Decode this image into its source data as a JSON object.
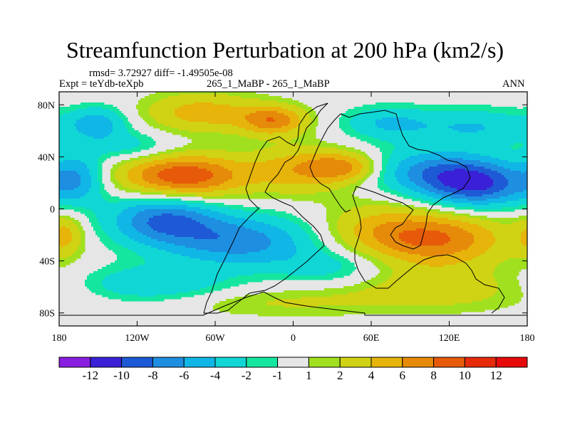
{
  "chart_data": {
    "type": "heatmap",
    "title": "Streamfunction Perturbation at 200 hPa (km2/s)",
    "stats": "rmsd= 3.72927 diff= -1.49505e-08",
    "expt": "Expt = teYdb-teXpb",
    "case": "265_1_MaBP - 265_1_MaBP",
    "period": "ANN",
    "x_ticks": [
      {
        "value": -180,
        "label": "180"
      },
      {
        "value": -120,
        "label": "120W"
      },
      {
        "value": -60,
        "label": "60W"
      },
      {
        "value": 0,
        "label": "0"
      },
      {
        "value": 60,
        "label": "60E"
      },
      {
        "value": 120,
        "label": "120E"
      },
      {
        "value": 180,
        "label": "180"
      }
    ],
    "y_ticks": [
      {
        "value": 80,
        "label": "80N"
      },
      {
        "value": 40,
        "label": "40N"
      },
      {
        "value": 0,
        "label": "0"
      },
      {
        "value": -40,
        "label": "40S"
      },
      {
        "value": -80,
        "label": "80S"
      }
    ],
    "xlim": [
      -180,
      180
    ],
    "ylim": [
      -90,
      90
    ],
    "colorbar": {
      "levels": [
        -12,
        -10,
        -8,
        -6,
        -4,
        -2,
        -1,
        1,
        2,
        4,
        6,
        8,
        10,
        12
      ],
      "labels": [
        "-12",
        "-10",
        "-8",
        "-6",
        "-4",
        "-2",
        "-1",
        "1",
        "2",
        "4",
        "6",
        "8",
        "10",
        "12"
      ],
      "colors": [
        "#8a1ee0",
        "#3a20d6",
        "#1e5ad6",
        "#1e8ee0",
        "#10b6e6",
        "#10d6d6",
        "#14e6a0",
        "#e6e6e6",
        "#a0e01e",
        "#d0d214",
        "#e6b40a",
        "#e68a0a",
        "#e65a0a",
        "#e62a0a",
        "#e60a0a"
      ]
    },
    "anomaly_centers": [
      {
        "lon": -150,
        "lat": 66,
        "value": -5,
        "spread_lon": 16,
        "spread_lat": 9
      },
      {
        "lon": -70,
        "lat": 74,
        "value": 5,
        "spread_lon": 32,
        "spread_lat": 11
      },
      {
        "lon": -15,
        "lat": 68,
        "value": 7,
        "spread_lon": 18,
        "spread_lat": 8
      },
      {
        "lon": -125,
        "lat": 48,
        "value": -3,
        "spread_lon": 25,
        "spread_lat": 8
      },
      {
        "lon": -165,
        "lat": 24,
        "value": -5,
        "spread_lon": 14,
        "spread_lat": 14
      },
      {
        "lon": -85,
        "lat": 25,
        "value": 10,
        "spread_lon": 34,
        "spread_lat": 12
      },
      {
        "lon": 5,
        "lat": 30,
        "value": 5,
        "spread_lon": 28,
        "spread_lat": 13
      },
      {
        "lon": 40,
        "lat": 32,
        "value": 6,
        "spread_lon": 20,
        "spread_lat": 8
      },
      {
        "lon": 72,
        "lat": 66,
        "value": -4,
        "spread_lon": 24,
        "spread_lat": 9
      },
      {
        "lon": 140,
        "lat": 63,
        "value": -4,
        "spread_lon": 34,
        "spread_lat": 10
      },
      {
        "lon": 140,
        "lat": 19,
        "value": -10,
        "spread_lon": 30,
        "spread_lat": 13
      },
      {
        "lon": 100,
        "lat": 30,
        "value": -5,
        "spread_lon": 35,
        "spread_lat": 12
      },
      {
        "lon": -100,
        "lat": -8,
        "value": -8,
        "spread_lon": 30,
        "spread_lat": 14
      },
      {
        "lon": -40,
        "lat": -25,
        "value": -7,
        "spread_lon": 40,
        "spread_lat": 14
      },
      {
        "lon": 110,
        "lat": -23,
        "value": 8,
        "spread_lon": 38,
        "spread_lat": 15
      },
      {
        "lon": 60,
        "lat": -15,
        "value": 3,
        "spread_lon": 30,
        "spread_lat": 15
      },
      {
        "lon": -175,
        "lat": -20,
        "value": 4,
        "spread_lon": 10,
        "spread_lat": 12
      },
      {
        "lon": -110,
        "lat": -58,
        "value": -4,
        "spread_lon": 42,
        "spread_lat": 10
      },
      {
        "lon": 30,
        "lat": -45,
        "value": -3,
        "spread_lon": 30,
        "spread_lat": 10
      },
      {
        "lon": 110,
        "lat": -62,
        "value": 3,
        "spread_lon": 60,
        "spread_lat": 12
      },
      {
        "lon": -20,
        "lat": -72,
        "value": 2,
        "spread_lon": 60,
        "spread_lat": 8
      }
    ]
  }
}
